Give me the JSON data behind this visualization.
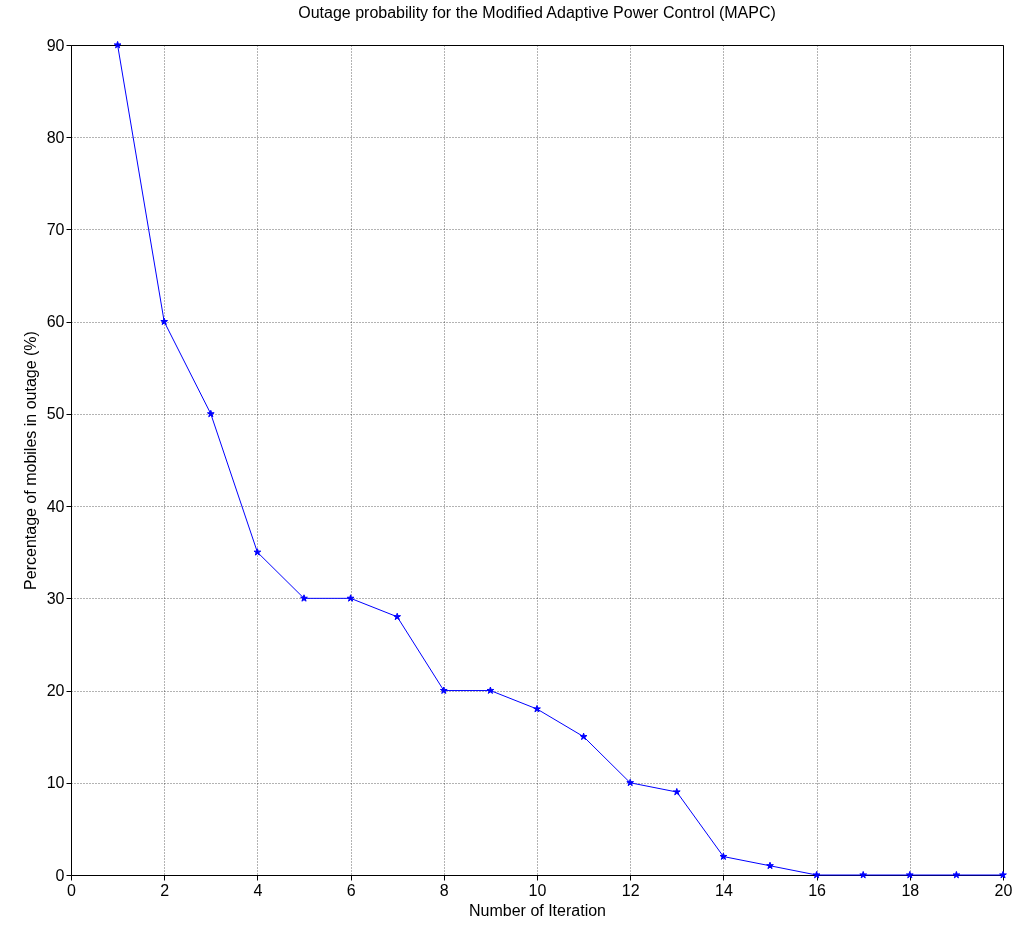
{
  "chart_data": {
    "type": "line",
    "title": "Outage probability for the Modified Adaptive Power Control (MAPC)",
    "xlabel": "Number of Iteration",
    "ylabel": "Percentage of mobiles in outage (%)",
    "x": [
      1,
      2,
      3,
      4,
      5,
      6,
      7,
      8,
      9,
      10,
      11,
      12,
      13,
      14,
      15,
      16,
      17,
      18,
      19,
      20
    ],
    "series": [
      {
        "color": "#0000ff",
        "values": [
          90,
          60,
          50,
          35,
          30,
          30,
          28,
          20,
          20,
          18,
          15,
          10,
          9,
          2,
          1,
          0,
          0,
          0,
          0,
          0
        ]
      }
    ],
    "xlim": [
      0,
      20
    ],
    "xticks": [
      0,
      2,
      4,
      6,
      8,
      10,
      12,
      14,
      16,
      18,
      20
    ],
    "ylim": [
      0,
      90
    ],
    "yticks": [
      0,
      10,
      20,
      30,
      40,
      50,
      60,
      70,
      80,
      90
    ],
    "grid": true,
    "marker": "star",
    "line_style": "solid"
  }
}
